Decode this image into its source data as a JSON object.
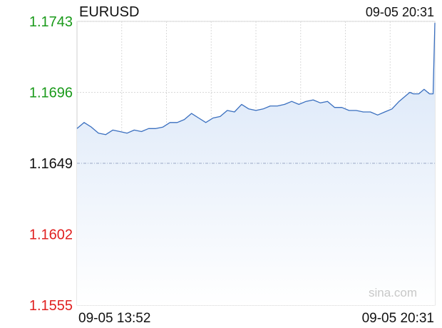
{
  "header": {
    "symbol": "EURUSD",
    "timestamp": "09-05 20:31"
  },
  "watermark": "sina.com",
  "colors": {
    "line": "#3a6fbf",
    "area_top": "#d6e4f7",
    "area_bottom": "#ffffff",
    "up": "#1a9a1a",
    "down": "#e02020",
    "neutral": "#111111",
    "grid": "#d9d9d9",
    "baseline": "#9aa6c4"
  },
  "chart_data": {
    "type": "area",
    "title": "EURUSD",
    "xlabel": "",
    "ylabel": "",
    "ylim": [
      1.1555,
      1.1743
    ],
    "baseline": 1.1649,
    "grid": true,
    "y_ticks": [
      {
        "label": "1.1743",
        "value": 1.1743,
        "color": "up"
      },
      {
        "label": "1.1696",
        "value": 1.1696,
        "color": "up"
      },
      {
        "label": "1.1649",
        "value": 1.1649,
        "color": "neutral"
      },
      {
        "label": "1.1602",
        "value": 1.1602,
        "color": "down"
      },
      {
        "label": "1.1555",
        "value": 1.1555,
        "color": "down"
      }
    ],
    "x_ticks": [
      "09-05 13:52",
      "09-05 20:31"
    ],
    "x": [
      0.0,
      0.02,
      0.04,
      0.06,
      0.08,
      0.1,
      0.12,
      0.14,
      0.16,
      0.18,
      0.2,
      0.22,
      0.24,
      0.26,
      0.28,
      0.3,
      0.32,
      0.34,
      0.36,
      0.38,
      0.4,
      0.42,
      0.44,
      0.46,
      0.48,
      0.5,
      0.52,
      0.54,
      0.56,
      0.58,
      0.6,
      0.62,
      0.64,
      0.66,
      0.68,
      0.7,
      0.72,
      0.74,
      0.76,
      0.78,
      0.8,
      0.82,
      0.84,
      0.86,
      0.88,
      0.9,
      0.92,
      0.93,
      0.94,
      0.955,
      0.97,
      0.985,
      0.995,
      1.0
    ],
    "values": [
      1.1672,
      1.1676,
      1.1673,
      1.1669,
      1.1668,
      1.1671,
      1.167,
      1.1669,
      1.1671,
      1.167,
      1.1672,
      1.1672,
      1.1673,
      1.1676,
      1.1676,
      1.1678,
      1.1682,
      1.1679,
      1.1676,
      1.1679,
      1.168,
      1.1684,
      1.1683,
      1.1688,
      1.1685,
      1.1684,
      1.1685,
      1.1687,
      1.1687,
      1.1688,
      1.169,
      1.1688,
      1.169,
      1.1691,
      1.1689,
      1.169,
      1.1686,
      1.1686,
      1.1684,
      1.1684,
      1.1683,
      1.1683,
      1.1681,
      1.1683,
      1.1685,
      1.169,
      1.1694,
      1.1696,
      1.1695,
      1.1695,
      1.1698,
      1.1695,
      1.1695,
      1.1742
    ]
  }
}
